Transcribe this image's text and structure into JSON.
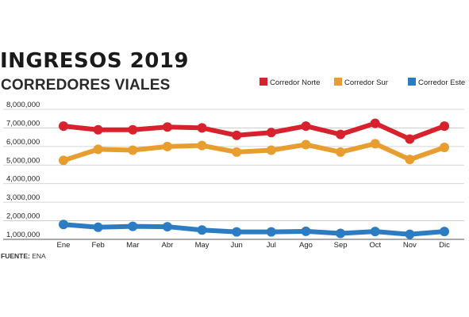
{
  "title": "INGRESOS 2019",
  "subtitle": "CORREDORES VIALES",
  "source": {
    "label": "FUENTE:",
    "text": "ENA"
  },
  "colors": {
    "norte": "#d7222e",
    "sur": "#e89d2f",
    "este": "#2b7cc3",
    "grid": "#c8c8c8",
    "axis": "#555555"
  },
  "chart_data": {
    "type": "line",
    "title": "INGRESOS 2019",
    "subtitle": "CORREDORES VIALES",
    "categories": [
      "Ene",
      "Feb",
      "Mar",
      "Abr",
      "May",
      "Jun",
      "Jul",
      "Ago",
      "Sep",
      "Oct",
      "Nov",
      "Dic"
    ],
    "y_ticks": [
      "1,000,000",
      "2,000,000",
      "3,000,000",
      "4,000,000",
      "5,000,000",
      "6,000,000",
      "7,000,000",
      "8,000,000"
    ],
    "ylim": [
      1000000,
      8000000
    ],
    "grid": true,
    "legend_position": "top-right",
    "series": [
      {
        "name": "Corredor Norte",
        "color": "#d7222e",
        "values": [
          7100000,
          6900000,
          6900000,
          7050000,
          7000000,
          6600000,
          6750000,
          7100000,
          6650000,
          7250000,
          6400000,
          7100000
        ]
      },
      {
        "name": "Corredor Sur",
        "color": "#e89d2f",
        "values": [
          5250000,
          5850000,
          5800000,
          6000000,
          6050000,
          5700000,
          5800000,
          6100000,
          5700000,
          6150000,
          5300000,
          5950000
        ]
      },
      {
        "name": "Corredor Este",
        "color": "#2b7cc3",
        "values": [
          1800000,
          1650000,
          1700000,
          1680000,
          1500000,
          1400000,
          1400000,
          1430000,
          1320000,
          1420000,
          1270000,
          1420000
        ]
      }
    ]
  }
}
